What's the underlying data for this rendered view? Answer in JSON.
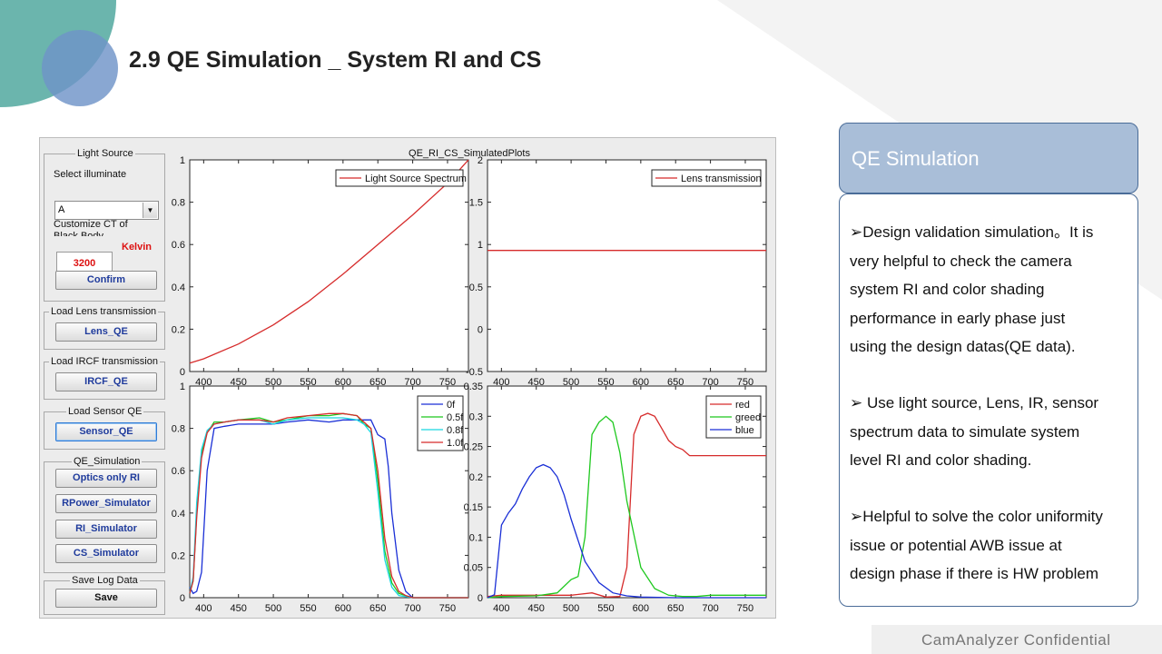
{
  "slide": {
    "title": "2.9  QE Simulation _ System RI and CS",
    "footer": "CamAnalyzer  Confidential"
  },
  "colors": {
    "teal": "#6bb5ad",
    "blue": "#6f94c8",
    "panel_header": "#a9bed8",
    "panel_border": "#4a6c98",
    "red": "#d62b2b",
    "green": "#1ec81e",
    "blue_line": "#1a2fd6",
    "cyan": "#19d6e0"
  },
  "app": {
    "light_source": {
      "group_label": "Light Source",
      "select_label": "Select illuminate",
      "illuminate_value": "A",
      "ct_label_1": "Customize CT of",
      "ct_label_2": "Black Body",
      "ct_value": "3200",
      "ct_unit": "Kelvin",
      "confirm": "Confirm"
    },
    "lens": {
      "group_label": "Load Lens transmission",
      "button": "Lens_QE"
    },
    "ircf": {
      "group_label": "Load IRCF transmission",
      "button": "IRCF_QE"
    },
    "sensor": {
      "group_label": "Load Sensor QE",
      "button": "Sensor_QE"
    },
    "qe_sim": {
      "group_label": "QE_Simulation",
      "buttons": [
        "Optics only RI",
        "RPower_Simulator",
        "RI_Simulator",
        "CS_Simulator"
      ]
    },
    "save": {
      "group_label": "Save Log Data",
      "button": "Save"
    },
    "figure_title": "QE_RI_CS_SimulatedPlots"
  },
  "chart_data": [
    {
      "type": "line",
      "xticks": [
        400,
        450,
        500,
        550,
        600,
        650,
        700,
        750
      ],
      "xlim": [
        380,
        780
      ],
      "ylim": [
        0,
        1
      ],
      "yticks": [
        "0",
        "0.2",
        "0.4",
        "0.6",
        "0.8",
        "1"
      ],
      "legend_placement": "top-right",
      "series": [
        {
          "name": "Light Source Spectrum",
          "color": "#d62b2b",
          "x": [
            380,
            400,
            450,
            500,
            550,
            600,
            650,
            700,
            750,
            780
          ],
          "y": [
            0.04,
            0.06,
            0.13,
            0.22,
            0.33,
            0.46,
            0.6,
            0.74,
            0.89,
            1.0
          ]
        }
      ]
    },
    {
      "type": "line",
      "xticks": [
        400,
        450,
        500,
        550,
        600,
        650,
        700,
        750
      ],
      "xlim": [
        380,
        780
      ],
      "ylim": [
        -0.5,
        2
      ],
      "yticks": [
        "-0.5",
        "0",
        "0.5",
        "1",
        "1.5",
        "2"
      ],
      "legend_placement": "top-right",
      "series": [
        {
          "name": "Lens transmission",
          "color": "#d62b2b",
          "x": [
            380,
            780
          ],
          "y": [
            0.93,
            0.93
          ]
        }
      ]
    },
    {
      "type": "line",
      "xticks": [
        400,
        450,
        500,
        550,
        600,
        650,
        700,
        750
      ],
      "xlim": [
        380,
        780
      ],
      "ylim": [
        0,
        1
      ],
      "yticks": [
        "0",
        "0.2",
        "0.4",
        "0.6",
        "0.8",
        "1"
      ],
      "legend_placement": "top-right",
      "series": [
        {
          "name": "0f",
          "color": "#1a2fd6",
          "x": [
            380,
            385,
            390,
            397,
            405,
            415,
            430,
            450,
            480,
            500,
            520,
            550,
            580,
            600,
            620,
            640,
            650,
            655,
            660,
            665,
            670,
            680,
            690,
            700,
            720,
            740,
            760,
            780
          ],
          "y": [
            0.05,
            0.02,
            0.03,
            0.12,
            0.6,
            0.8,
            0.81,
            0.82,
            0.82,
            0.82,
            0.83,
            0.84,
            0.83,
            0.84,
            0.84,
            0.84,
            0.77,
            0.76,
            0.75,
            0.62,
            0.4,
            0.13,
            0.03,
            0.0,
            0.0,
            0.0,
            0.0,
            0.0
          ]
        },
        {
          "name": "0.5f",
          "color": "#1ec81e",
          "x": [
            380,
            385,
            390,
            397,
            405,
            415,
            430,
            450,
            480,
            500,
            520,
            550,
            580,
            600,
            620,
            630,
            640,
            650,
            660,
            670,
            680,
            690,
            700,
            720,
            740,
            760,
            780
          ],
          "y": [
            0.02,
            0.08,
            0.4,
            0.68,
            0.78,
            0.83,
            0.83,
            0.84,
            0.85,
            0.83,
            0.84,
            0.86,
            0.86,
            0.87,
            0.86,
            0.82,
            0.8,
            0.55,
            0.22,
            0.07,
            0.02,
            0.01,
            0.0,
            0.0,
            0.0,
            0.0,
            0.0
          ]
        },
        {
          "name": "0.8f",
          "color": "#19d6e0",
          "x": [
            380,
            385,
            390,
            397,
            405,
            415,
            430,
            450,
            480,
            500,
            520,
            550,
            580,
            600,
            620,
            630,
            640,
            650,
            660,
            670,
            680,
            700,
            720,
            740,
            760,
            780
          ],
          "y": [
            0.02,
            0.1,
            0.45,
            0.7,
            0.79,
            0.82,
            0.83,
            0.84,
            0.84,
            0.82,
            0.84,
            0.85,
            0.85,
            0.85,
            0.84,
            0.82,
            0.78,
            0.5,
            0.18,
            0.05,
            0.01,
            0.0,
            0.0,
            0.0,
            0.0,
            0.0
          ]
        },
        {
          "name": "1.0f",
          "color": "#d62b2b",
          "x": [
            380,
            385,
            390,
            397,
            405,
            415,
            430,
            450,
            480,
            500,
            520,
            550,
            580,
            600,
            620,
            630,
            640,
            650,
            660,
            670,
            680,
            690,
            700,
            720,
            740,
            760,
            780
          ],
          "y": [
            0.02,
            0.08,
            0.38,
            0.66,
            0.78,
            0.82,
            0.83,
            0.84,
            0.84,
            0.83,
            0.85,
            0.86,
            0.87,
            0.87,
            0.86,
            0.83,
            0.8,
            0.6,
            0.28,
            0.1,
            0.03,
            0.01,
            0.0,
            0.0,
            0.0,
            0.0,
            0.0
          ]
        }
      ]
    },
    {
      "type": "line",
      "xticks": [
        400,
        450,
        500,
        550,
        600,
        650,
        700,
        750
      ],
      "xlim": [
        380,
        780
      ],
      "ylim": [
        0,
        0.35
      ],
      "yticks": [
        "0",
        "0.05",
        "0.1",
        "0.15",
        "0.2",
        "0.25",
        "0.3",
        "0.35"
      ],
      "legend_placement": "top-right",
      "series": [
        {
          "name": "red",
          "color": "#d62b2b",
          "x": [
            380,
            400,
            450,
            500,
            530,
            550,
            570,
            580,
            590,
            600,
            610,
            620,
            630,
            640,
            650,
            660,
            670,
            700,
            780
          ],
          "y": [
            0.002,
            0.004,
            0.004,
            0.004,
            0.008,
            0.001,
            0.002,
            0.05,
            0.27,
            0.3,
            0.305,
            0.3,
            0.28,
            0.26,
            0.25,
            0.245,
            0.235,
            0.235,
            0.235
          ]
        },
        {
          "name": "greed",
          "color": "#1ec81e",
          "x": [
            380,
            400,
            450,
            480,
            500,
            510,
            520,
            530,
            540,
            550,
            560,
            570,
            580,
            600,
            620,
            640,
            660,
            680,
            700,
            780
          ],
          "y": [
            0.0,
            0.002,
            0.003,
            0.008,
            0.03,
            0.035,
            0.1,
            0.27,
            0.29,
            0.3,
            0.29,
            0.24,
            0.16,
            0.05,
            0.015,
            0.004,
            0.002,
            0.002,
            0.004,
            0.004
          ]
        },
        {
          "name": "blue",
          "color": "#1a2fd6",
          "x": [
            380,
            390,
            400,
            410,
            420,
            430,
            440,
            450,
            460,
            470,
            480,
            490,
            500,
            520,
            540,
            560,
            580,
            600,
            650,
            700,
            780
          ],
          "y": [
            0.0,
            0.005,
            0.12,
            0.14,
            0.155,
            0.18,
            0.2,
            0.215,
            0.22,
            0.215,
            0.2,
            0.17,
            0.13,
            0.06,
            0.025,
            0.008,
            0.003,
            0.001,
            0.0,
            0.0,
            0.0
          ]
        }
      ]
    }
  ],
  "panel": {
    "header": "QE Simulation",
    "bullet": "➢",
    "paragraphs": [
      [
        "Design validation simulation。It is",
        "very helpful to check the camera",
        "system RI and color shading",
        "performance in early phase just",
        "using the design datas(QE data)."
      ],
      [
        " Use light source, Lens, IR, sensor",
        "spectrum data to simulate system",
        "level RI and color shading."
      ],
      [
        "Helpful to solve the color uniformity",
        "issue or potential AWB issue at",
        "design phase if there is HW problem"
      ]
    ]
  }
}
